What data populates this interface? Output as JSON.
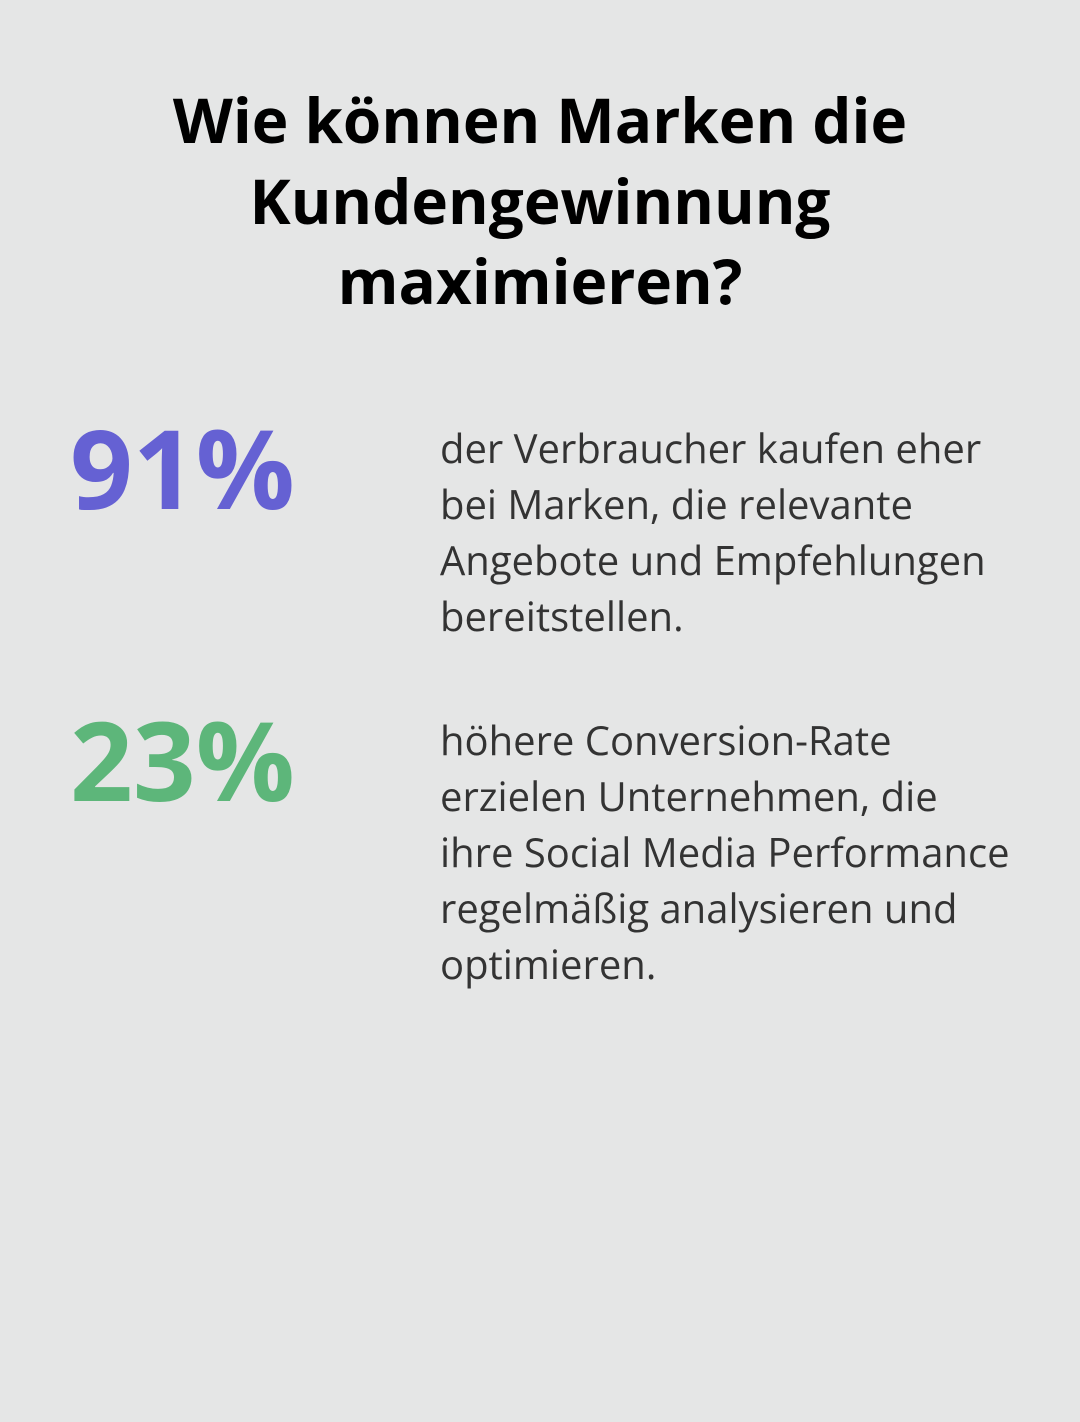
{
  "title": "Wie können Marken die Kundengewinnung maximieren?",
  "stats": [
    {
      "value": "91%",
      "color": "#6561d3",
      "description": "der Verbraucher kaufen eher bei Marken, die relevante Angebote und Empfehlungen bereitstellen."
    },
    {
      "value": "23%",
      "color": "#5db67a",
      "description": "höhere Conversion-Rate erzielen Unternehmen, die ihre Social Media Performance regelmäßig analysieren und optimieren."
    }
  ],
  "styling": {
    "background_color": "#e5e6e6",
    "title_color": "#000000",
    "text_color": "#333333",
    "title_fontsize": 62,
    "stat_number_fontsize": 110,
    "stat_text_fontsize": 40
  }
}
